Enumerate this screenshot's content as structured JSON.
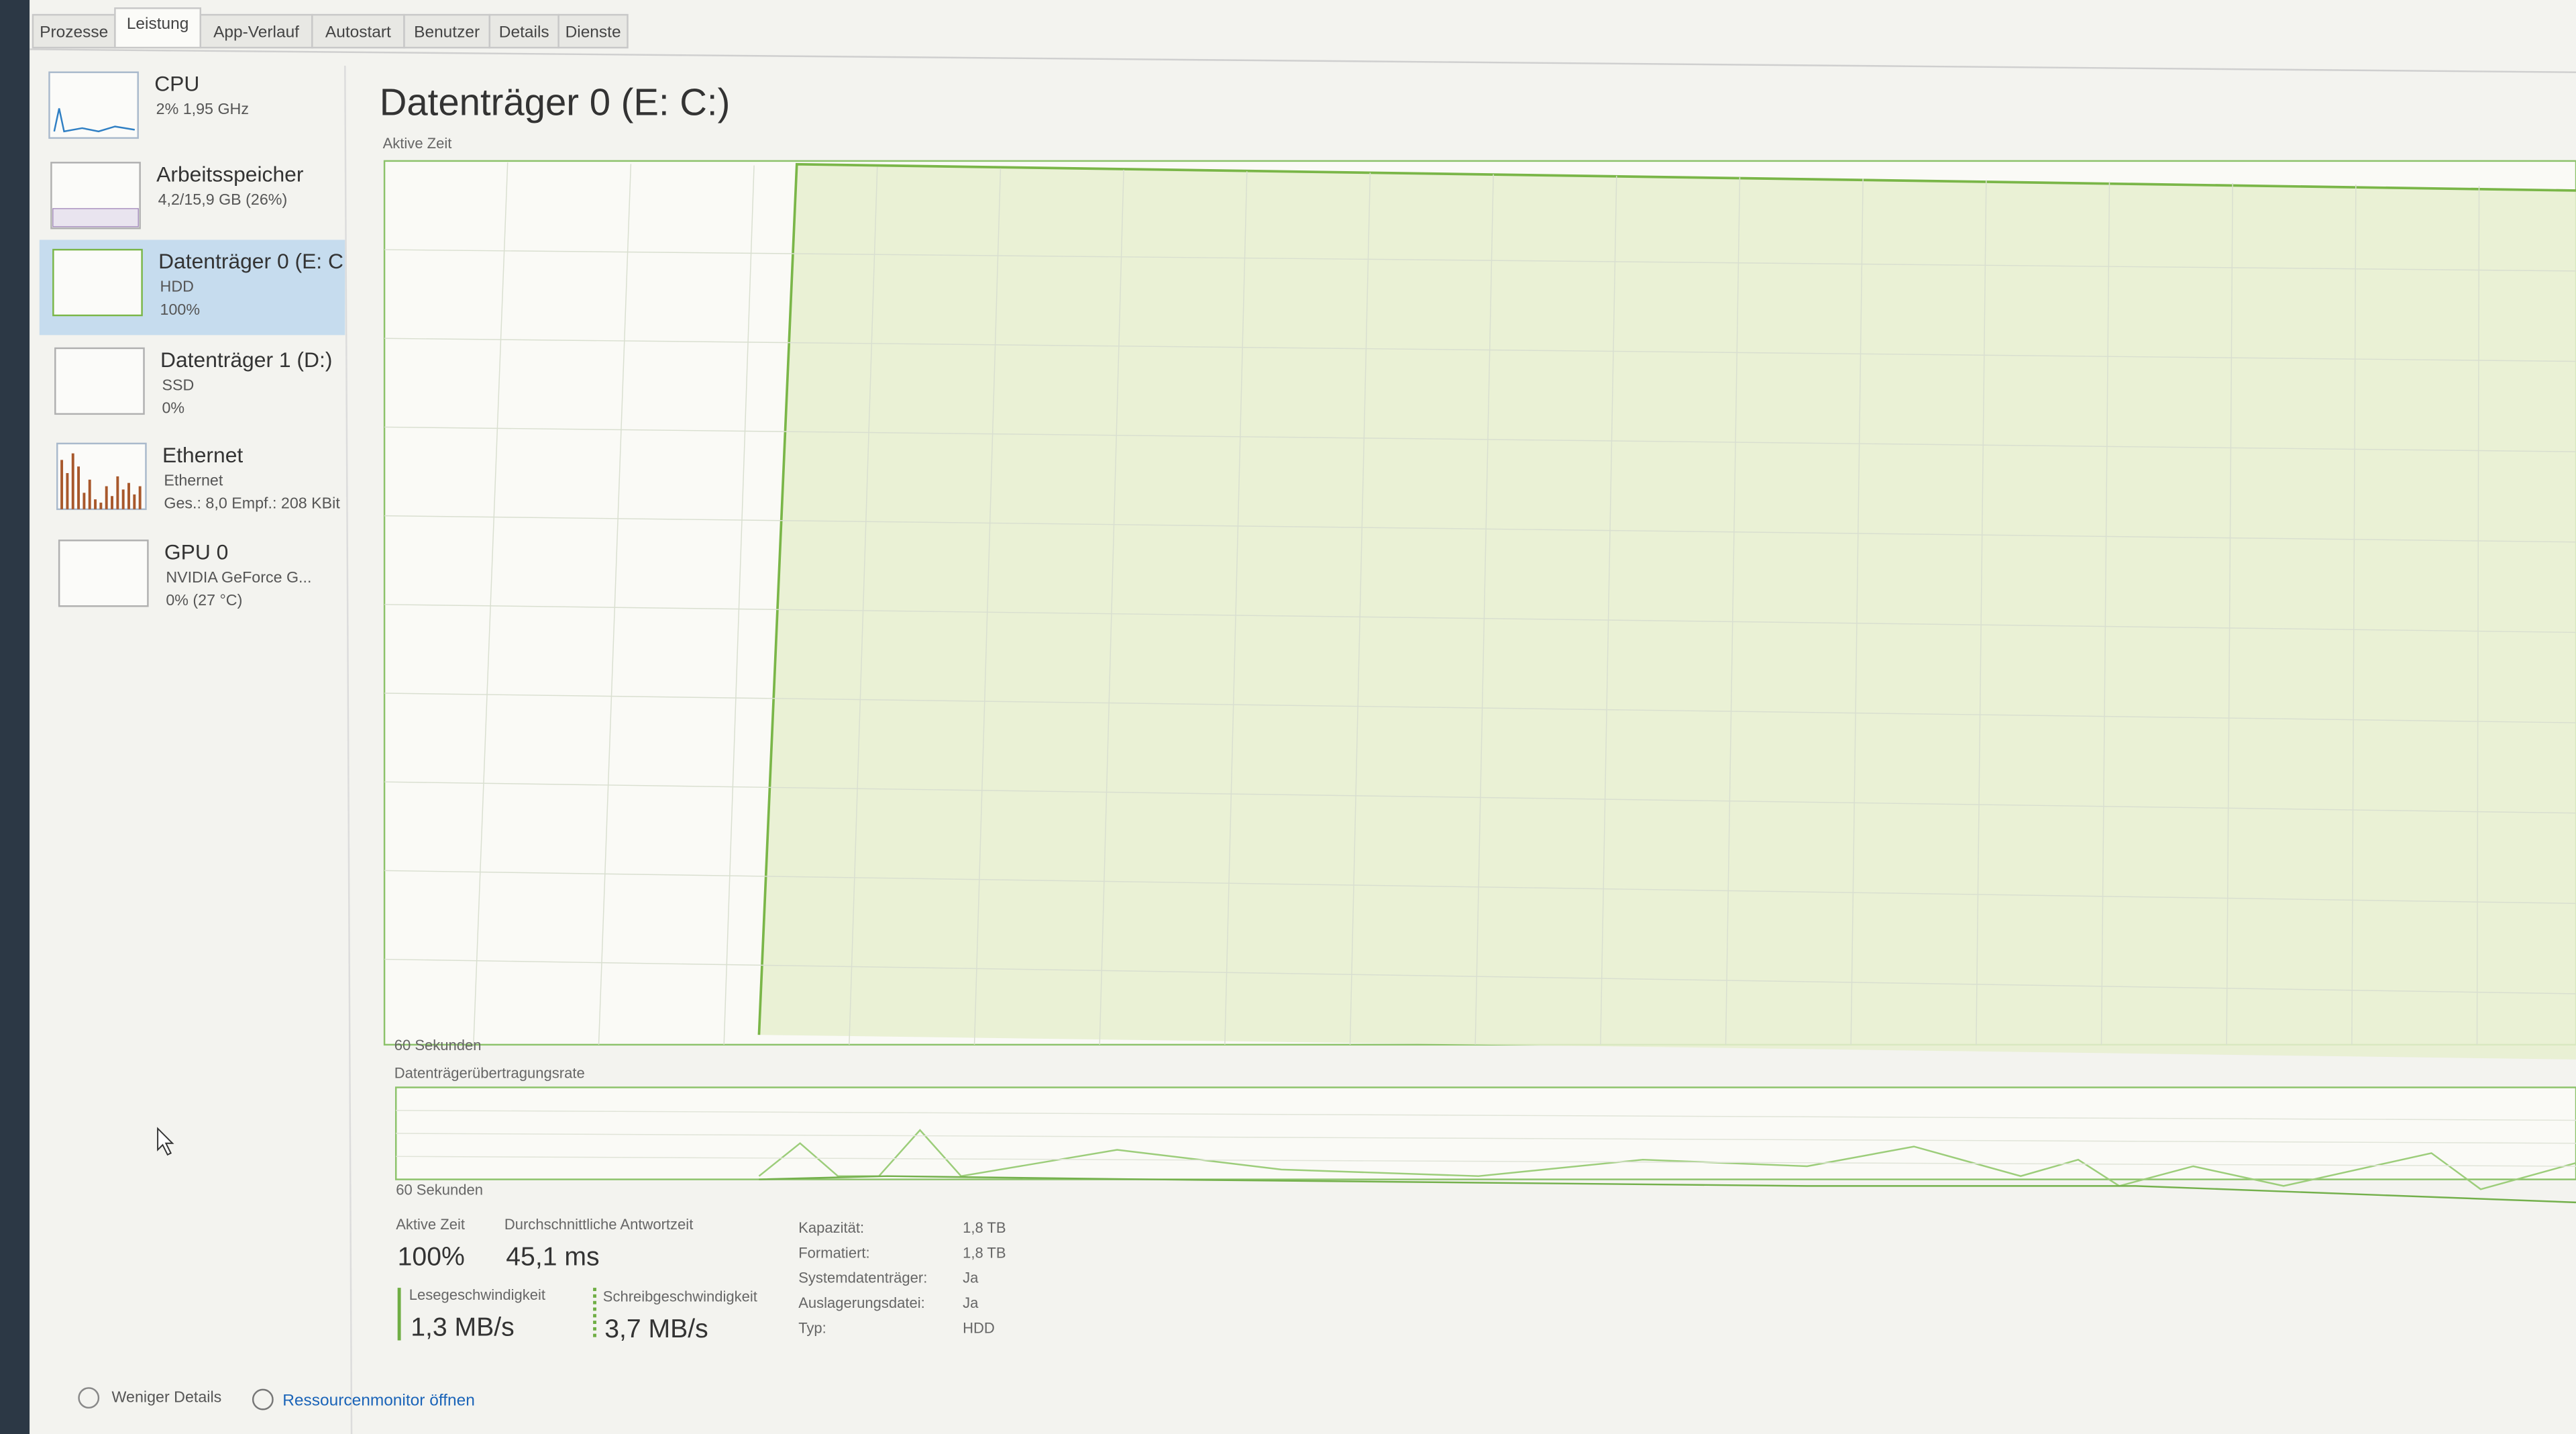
{
  "tabs": [
    "Prozesse",
    "Leistung",
    "App-Verlauf",
    "Autostart",
    "Benutzer",
    "Details",
    "Dienste"
  ],
  "sidebar": [
    {
      "title": "CPU",
      "lines": [
        "2% 1,95 GHz"
      ]
    },
    {
      "title": "Arbeitsspeicher",
      "lines": [
        "4,2/15,9 GB (26%)"
      ]
    },
    {
      "title": "Datenträger 0 (E: C",
      "lines": [
        "HDD",
        "100%"
      ]
    },
    {
      "title": "Datenträger 1 (D:)",
      "lines": [
        "SSD",
        "0%"
      ]
    },
    {
      "title": "Ethernet",
      "lines": [
        "Ethernet",
        "Ges.: 8,0 Empf.: 208 KBit"
      ]
    },
    {
      "title": "GPU 0",
      "lines": [
        "NVIDIA GeForce G...",
        "0% (27 °C)"
      ]
    }
  ],
  "main": {
    "title": "Datenträger 0 (E: C:)",
    "graph1": {
      "label": "Aktive Zeit",
      "axis": "60 Sekunden"
    },
    "graph2": {
      "label": "Datenträgerübertragungsrate",
      "axis": "60 Sekunden"
    },
    "stats": [
      {
        "label": "Aktive Zeit",
        "value": "100%"
      },
      {
        "label": "Durchschnittliche Antwortzeit",
        "value": "45,1 ms"
      },
      {
        "label": "Lesegeschwindigkeit",
        "value": "1,3 MB/s"
      },
      {
        "label": "Schreibgeschwindigkeit",
        "value": "3,7 MB/s"
      }
    ],
    "properties": [
      [
        "Kapazität:",
        "1,8 TB"
      ],
      [
        "Formatiert:",
        "1,8 TB"
      ],
      [
        "Systemdatenträger:",
        "Ja"
      ],
      [
        "Auslagerungsdatei:",
        "Ja"
      ],
      [
        "Typ:",
        "HDD"
      ]
    ]
  },
  "footer": {
    "less": "Weniger Details",
    "monitor": "Ressourcenmonitor öffnen"
  }
}
